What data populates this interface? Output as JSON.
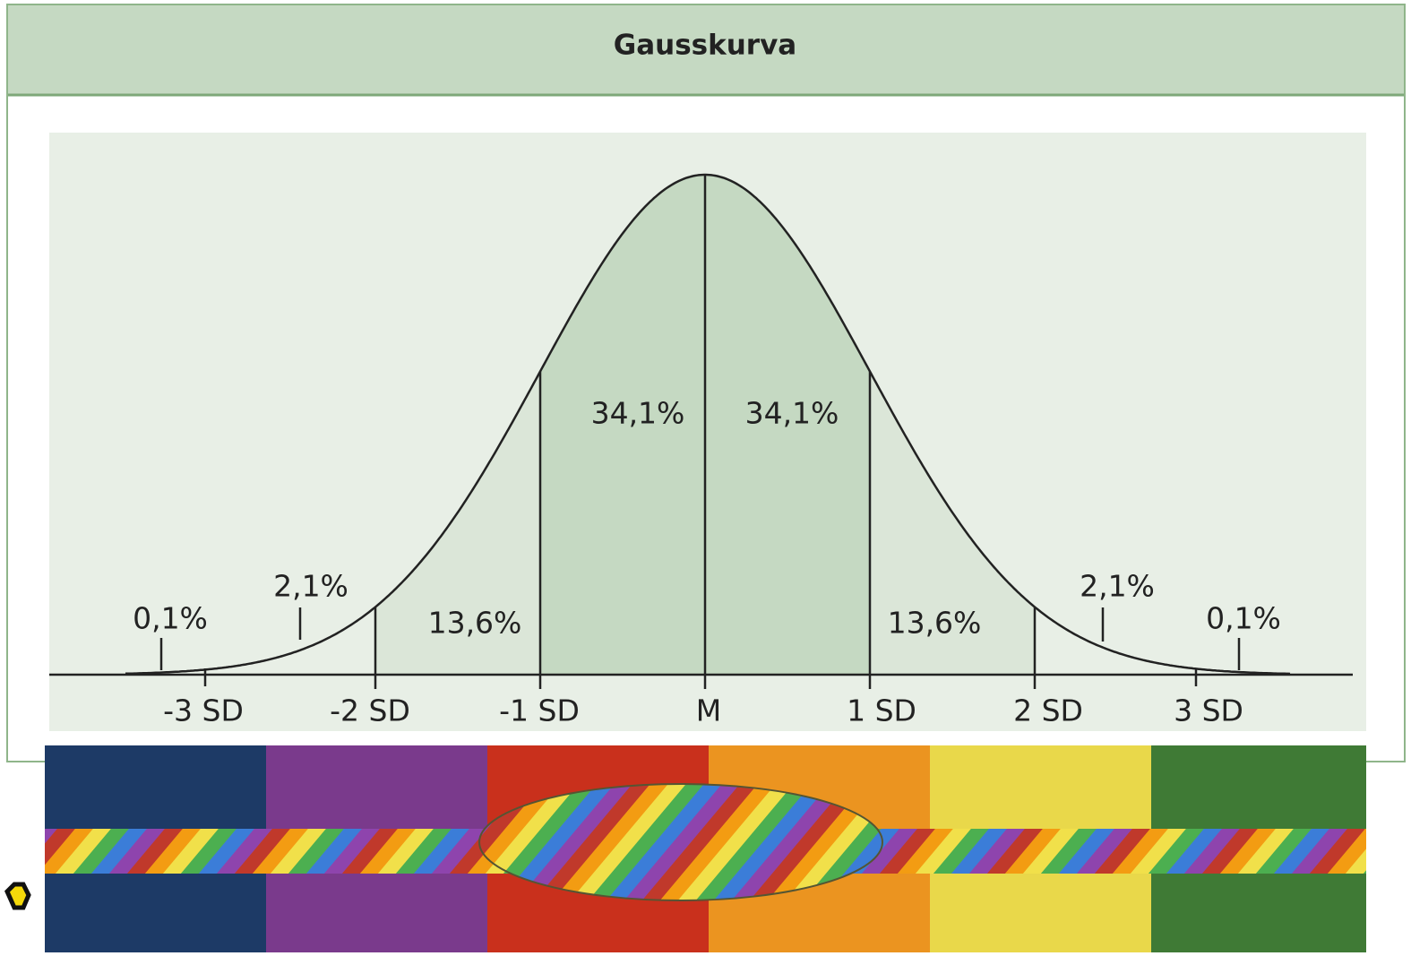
{
  "header": {
    "title": "Gausskurva"
  },
  "regions": [
    "0,1%",
    "2,1%",
    "13,6%",
    "34,1%",
    "34,1%",
    "13,6%",
    "2,1%",
    "0,1%"
  ],
  "axis_labels": [
    "-3 SD",
    "-2 SD",
    "-1 SD",
    "M",
    "1 SD",
    "2 SD",
    "3 SD"
  ]
}
